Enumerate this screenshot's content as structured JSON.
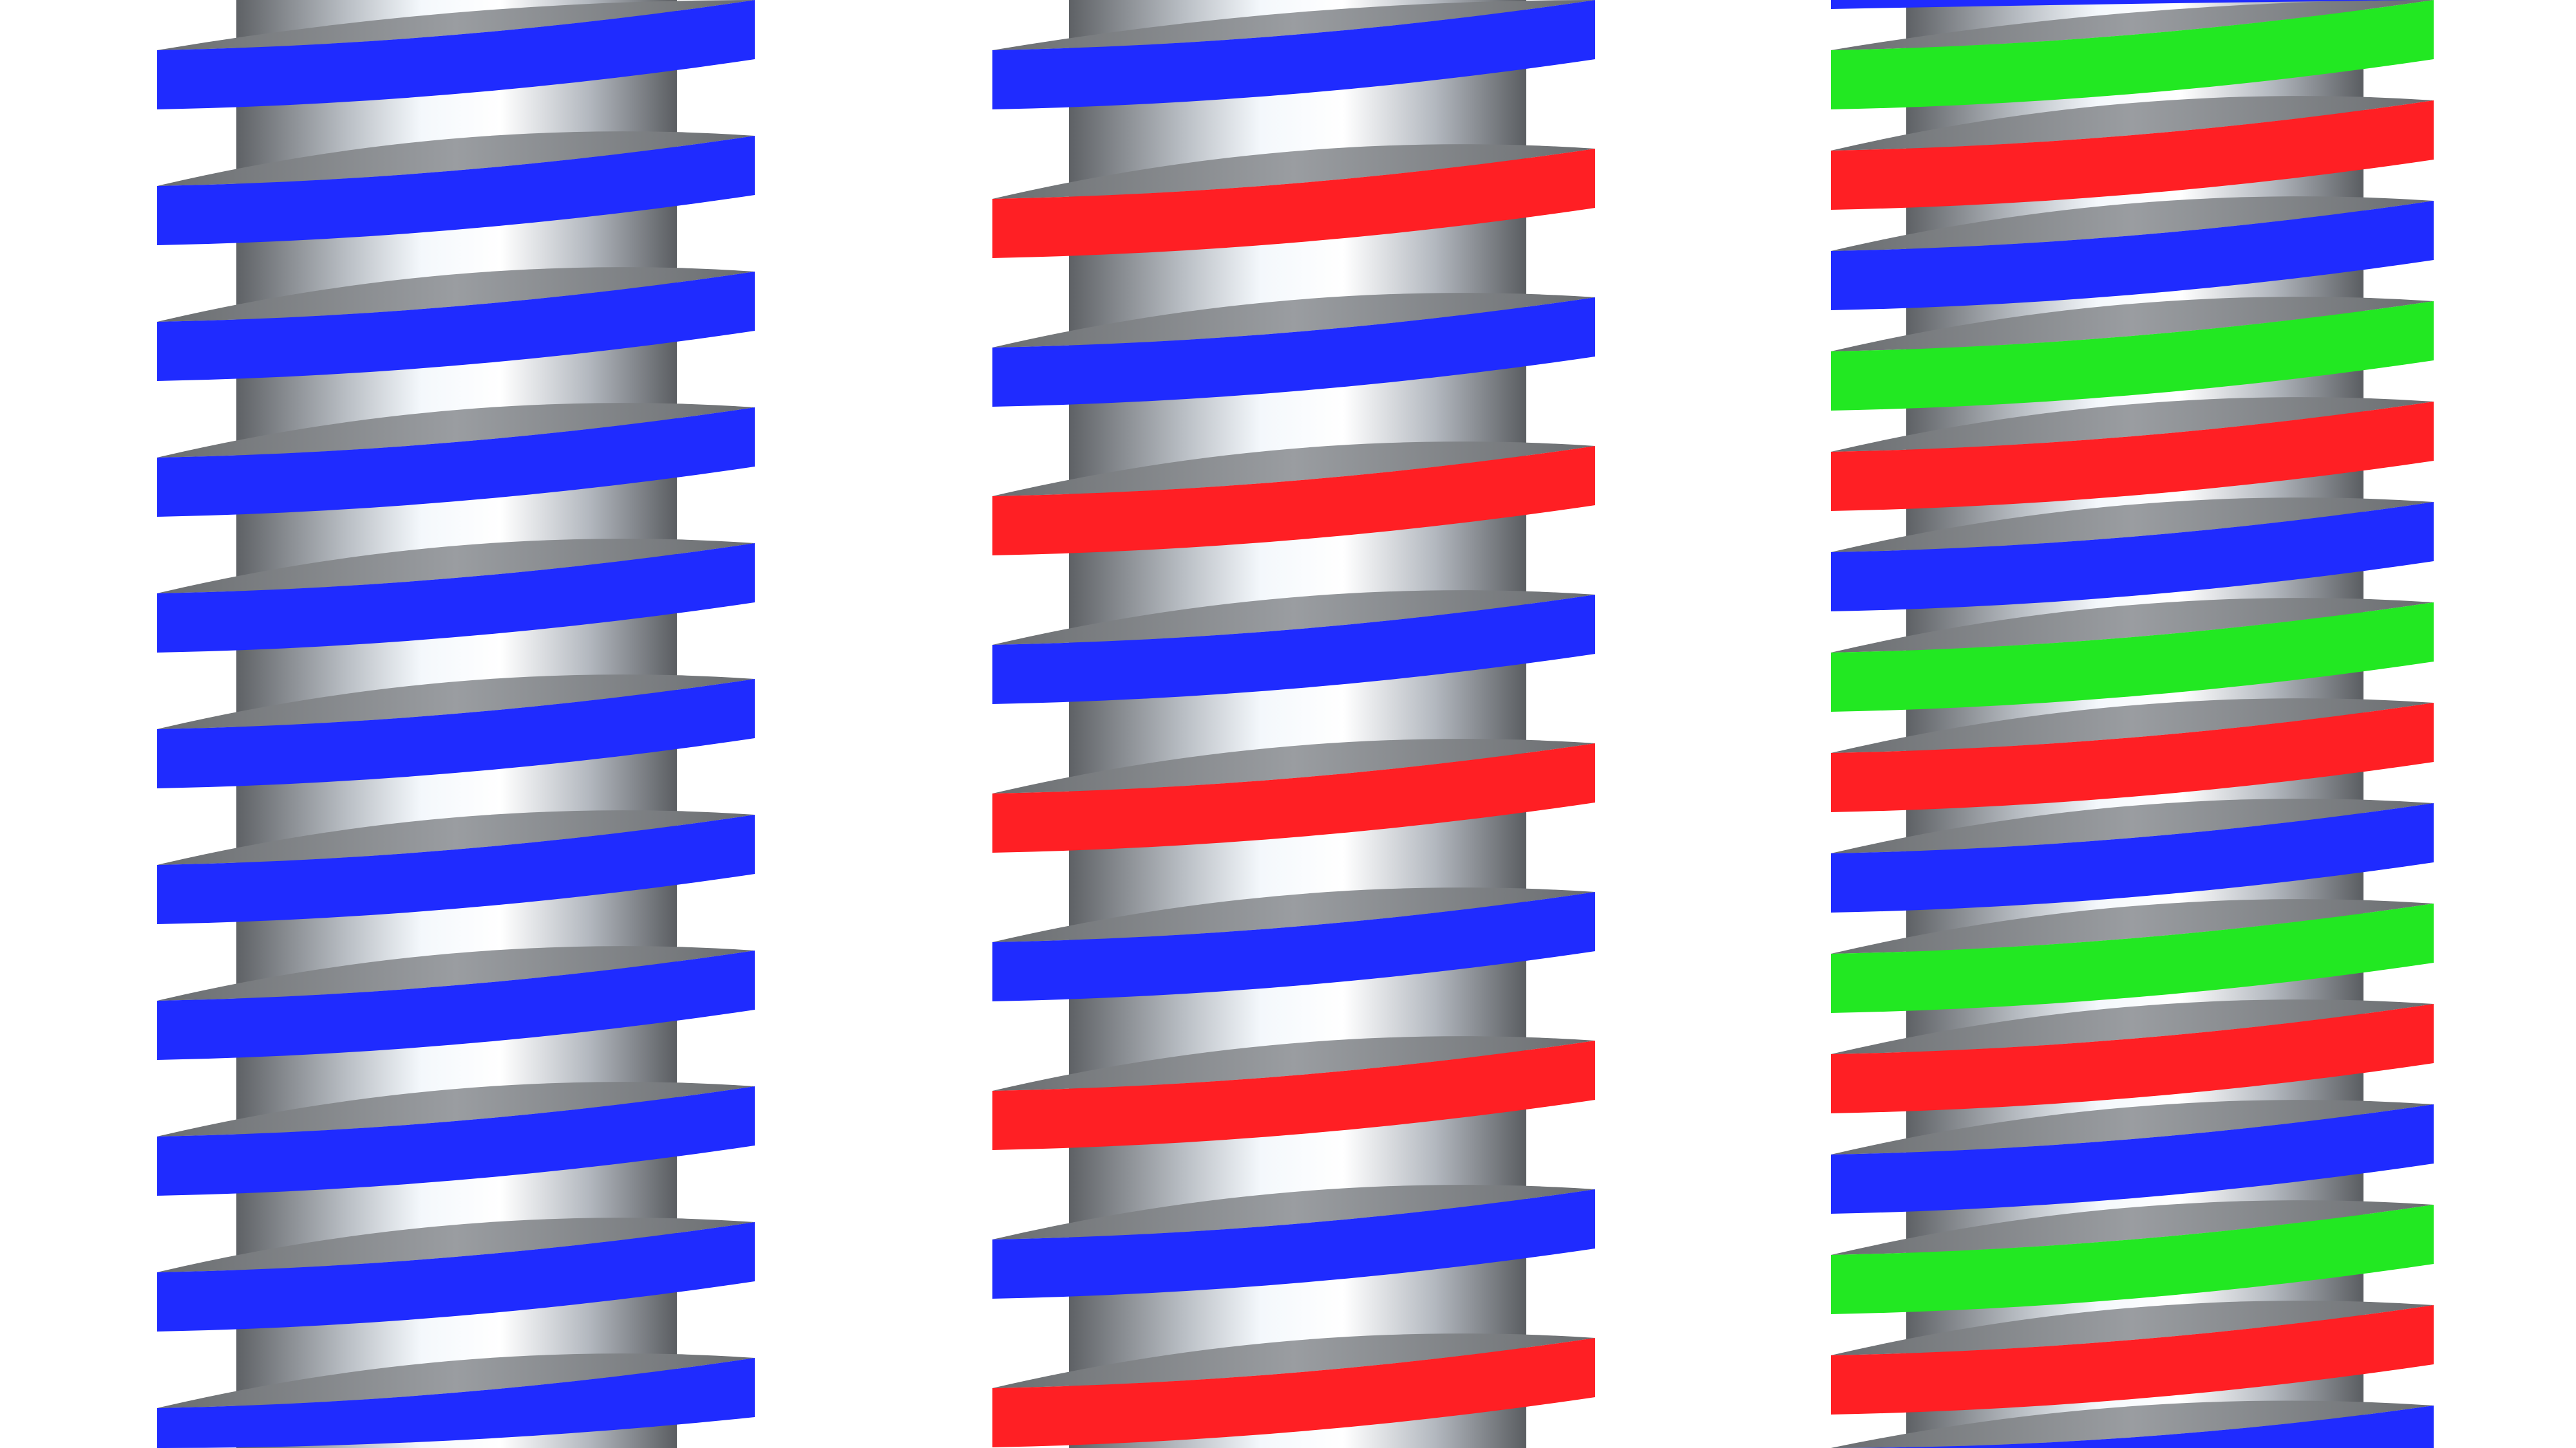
{
  "threads": [
    {
      "name": "single-start",
      "starts": 1,
      "colors": [
        "#1f2bff"
      ]
    },
    {
      "name": "double-start",
      "starts": 2,
      "colors": [
        "#ff1f24",
        "#1f2bff"
      ]
    },
    {
      "name": "triple-start",
      "starts": 3,
      "colors": [
        "#1f2bff",
        "#22e822",
        "#ff1f24"
      ]
    }
  ],
  "core_color": "#8a8d92",
  "background": "#ffffff"
}
